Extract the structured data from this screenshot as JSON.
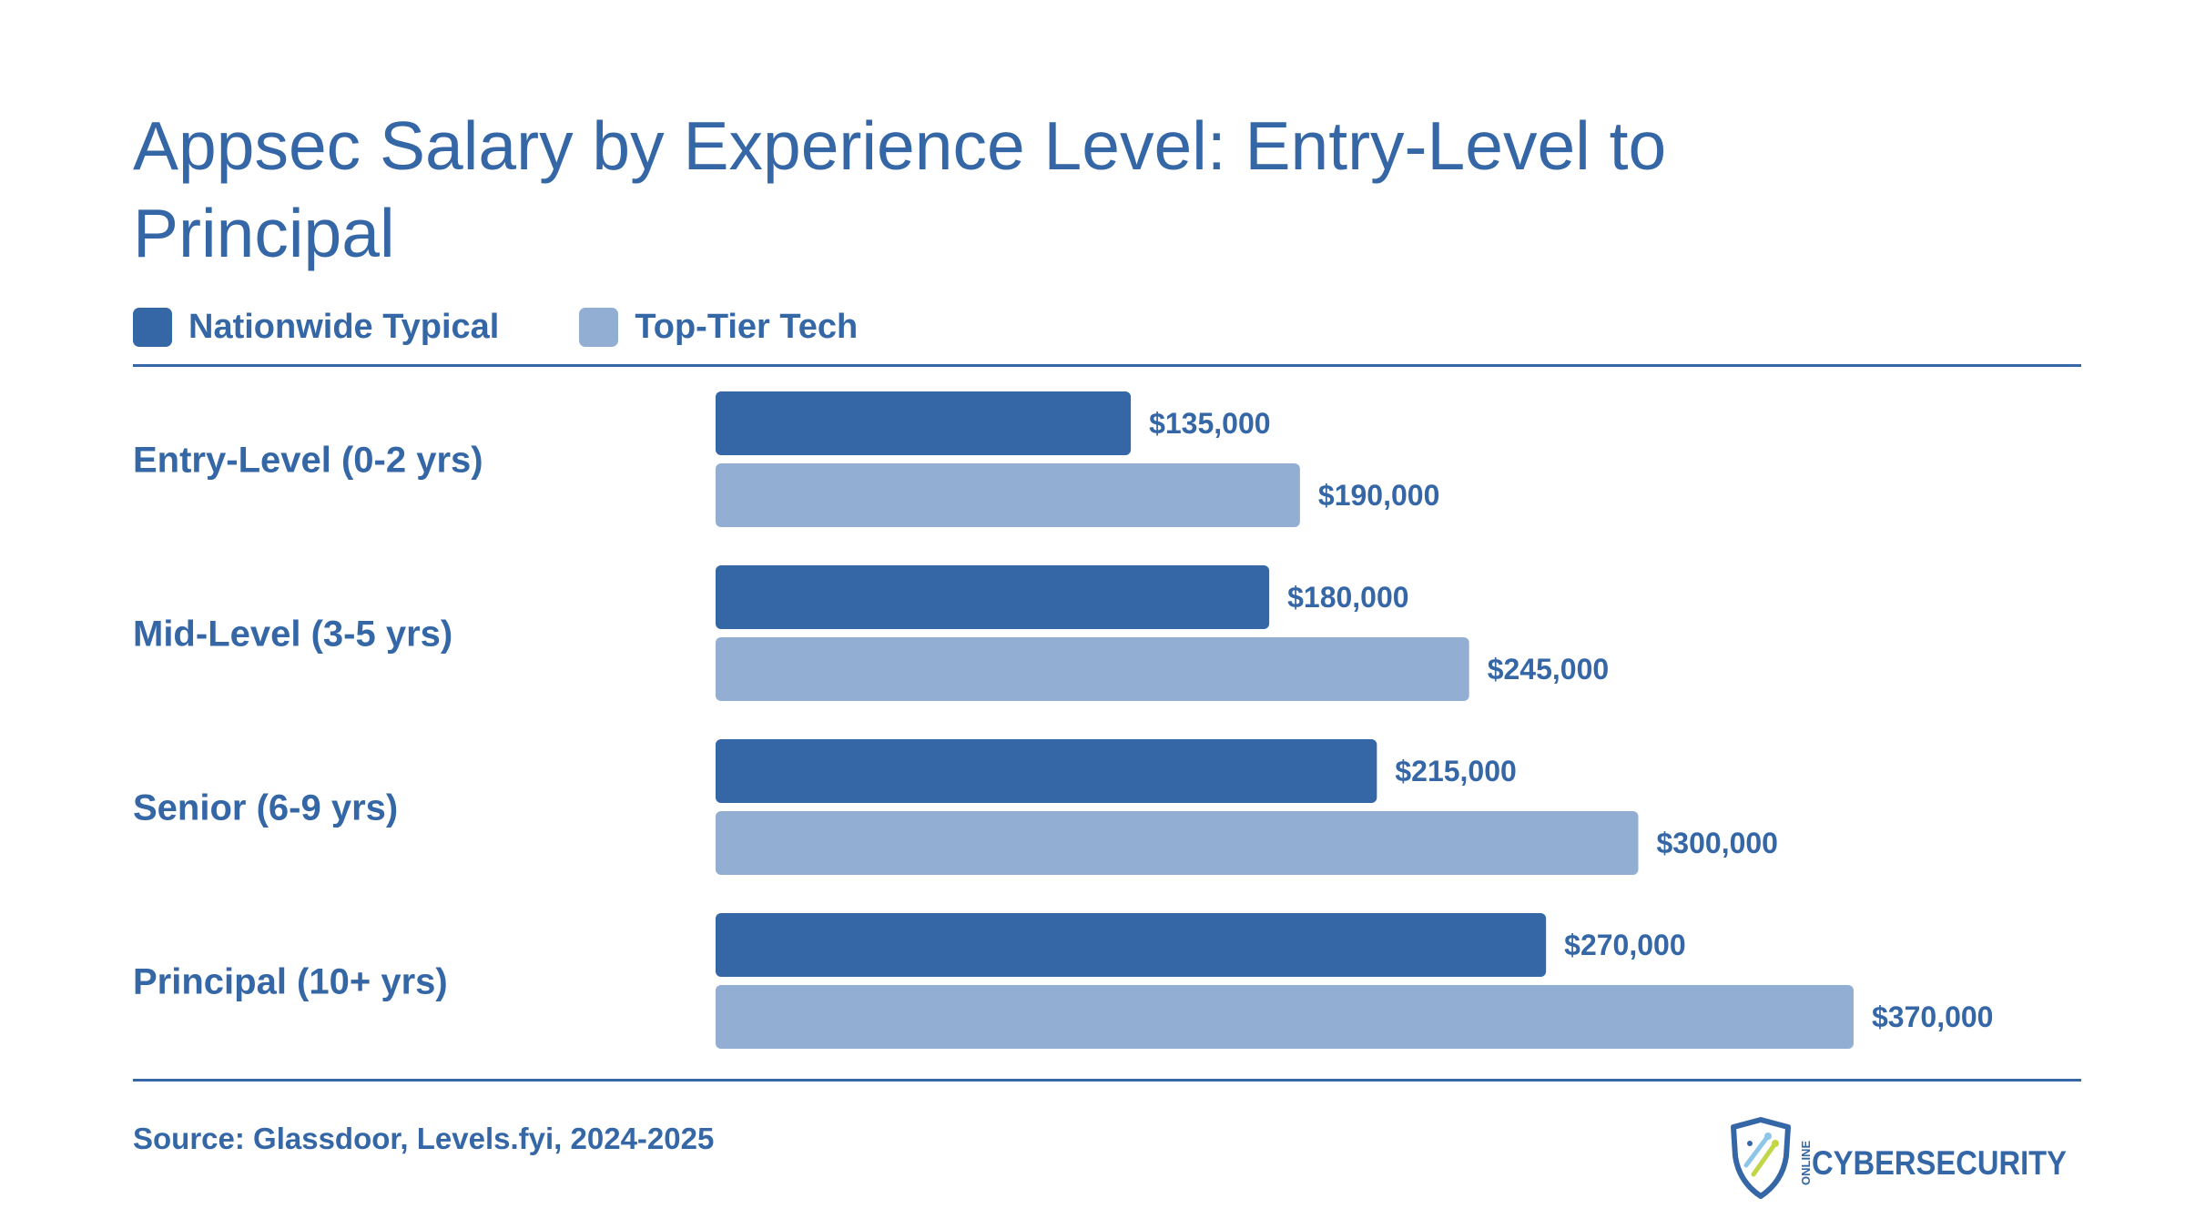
{
  "title": "Appsec Salary by Experience Level: Entry-Level to Principal",
  "source": "Source: Glassdoor, Levels.fyi, 2024-2025",
  "logo": {
    "small_text": "ONLINE",
    "text": "CYBERSECURITY",
    "icon": "shield-icon"
  },
  "colors": {
    "primary": "#3567a6",
    "secondary": "#92afd3",
    "text": "#3567a6",
    "background": "#ffffff"
  },
  "chart_data": {
    "type": "bar",
    "orientation": "horizontal",
    "categories": [
      "Entry-Level (0-2 yrs)",
      "Mid-Level (3-5 yrs)",
      "Senior (6-9 yrs)",
      "Principal (10+ yrs)"
    ],
    "series": [
      {
        "name": "Nationwide Typical",
        "color": "#3567a6",
        "values": [
          135000,
          180000,
          215000,
          270000
        ],
        "labels": [
          "$135,000",
          "$180,000",
          "$215,000",
          "$270,000"
        ]
      },
      {
        "name": "Top-Tier Tech",
        "color": "#92afd3",
        "values": [
          190000,
          245000,
          300000,
          370000
        ],
        "labels": [
          "$190,000",
          "$245,000",
          "$300,000",
          "$370,000"
        ]
      }
    ],
    "legend_position": "top-left",
    "grid": false,
    "axis_visible": false
  }
}
